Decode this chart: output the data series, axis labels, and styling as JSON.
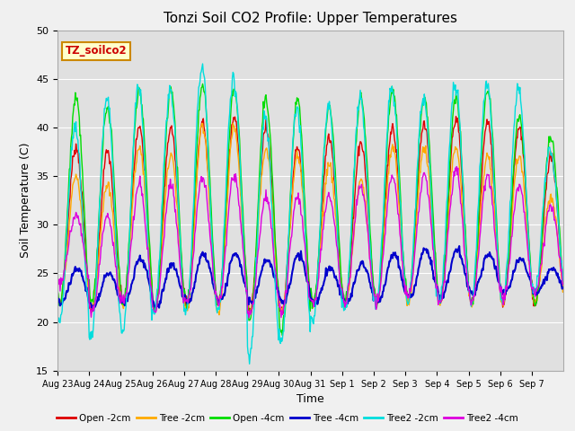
{
  "title": "Tonzi Soil CO2 Profile: Upper Temperatures",
  "xlabel": "Time",
  "ylabel": "Soil Temperature (C)",
  "ylim": [
    15,
    50
  ],
  "yticks": [
    15,
    20,
    25,
    30,
    35,
    40,
    45,
    50
  ],
  "plot_bg_color": "#e0e0e0",
  "fig_bg_color": "#f0f0f0",
  "legend_label": "TZ_soilco2",
  "series_labels": [
    "Open -2cm",
    "Tree -2cm",
    "Open -4cm",
    "Tree -4cm",
    "Tree2 -2cm",
    "Tree2 -4cm"
  ],
  "series_colors": [
    "#dd0000",
    "#ffaa00",
    "#00dd00",
    "#0000cc",
    "#00dddd",
    "#dd00dd"
  ],
  "n_days": 16,
  "xtick_labels": [
    "Aug 23",
    "Aug 24",
    "Aug 25",
    "Aug 26",
    "Aug 27",
    "Aug 28",
    "Aug 29",
    "Aug 30",
    "Aug 31",
    "Sep 1",
    "Sep 2",
    "Sep 3",
    "Sep 4",
    "Sep 5",
    "Sep 6",
    "Sep 7"
  ]
}
